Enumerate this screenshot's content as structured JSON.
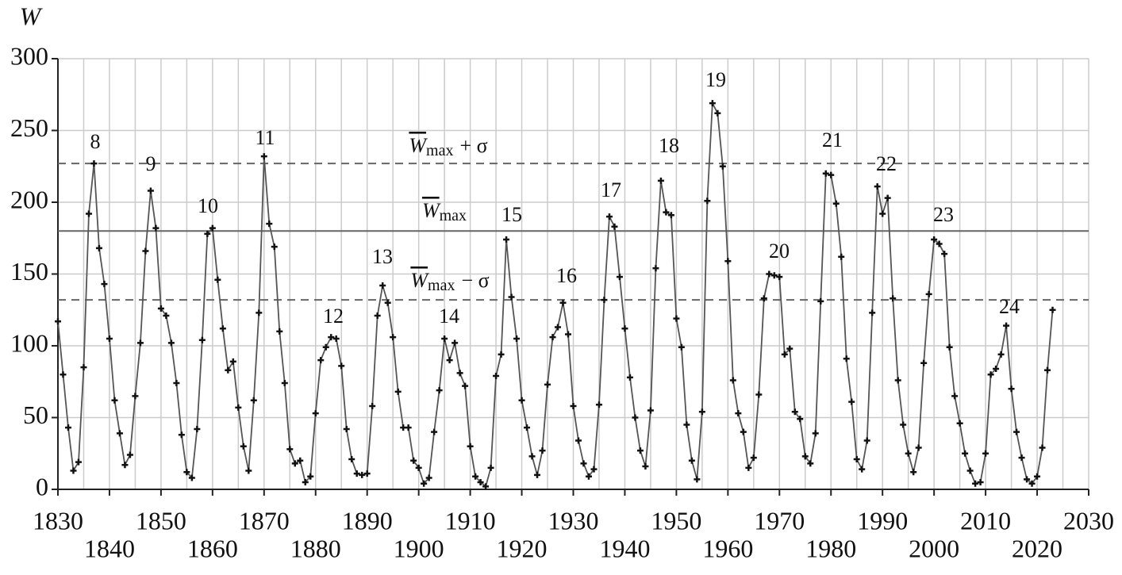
{
  "chart_data": {
    "type": "line",
    "y_label": "W",
    "x": [
      1830,
      1831,
      1832,
      1833,
      1834,
      1835,
      1836,
      1837,
      1838,
      1839,
      1840,
      1841,
      1842,
      1843,
      1844,
      1845,
      1846,
      1847,
      1848,
      1849,
      1850,
      1851,
      1852,
      1853,
      1854,
      1855,
      1856,
      1857,
      1858,
      1859,
      1860,
      1861,
      1862,
      1863,
      1864,
      1865,
      1866,
      1867,
      1868,
      1869,
      1870,
      1871,
      1872,
      1873,
      1874,
      1875,
      1876,
      1877,
      1878,
      1879,
      1880,
      1881,
      1882,
      1883,
      1884,
      1885,
      1886,
      1887,
      1888,
      1889,
      1890,
      1891,
      1892,
      1893,
      1894,
      1895,
      1896,
      1897,
      1898,
      1899,
      1900,
      1901,
      1902,
      1903,
      1904,
      1905,
      1906,
      1907,
      1908,
      1909,
      1910,
      1911,
      1912,
      1913,
      1914,
      1915,
      1916,
      1917,
      1918,
      1919,
      1920,
      1921,
      1922,
      1923,
      1924,
      1925,
      1926,
      1927,
      1928,
      1929,
      1930,
      1931,
      1932,
      1933,
      1934,
      1935,
      1936,
      1937,
      1938,
      1939,
      1940,
      1941,
      1942,
      1943,
      1944,
      1945,
      1946,
      1947,
      1948,
      1949,
      1950,
      1951,
      1952,
      1953,
      1954,
      1955,
      1956,
      1957,
      1958,
      1959,
      1960,
      1961,
      1962,
      1963,
      1964,
      1965,
      1966,
      1967,
      1968,
      1969,
      1970,
      1971,
      1972,
      1973,
      1974,
      1975,
      1976,
      1977,
      1978,
      1979,
      1980,
      1981,
      1982,
      1983,
      1984,
      1985,
      1986,
      1987,
      1988,
      1989,
      1990,
      1991,
      1992,
      1993,
      1994,
      1995,
      1996,
      1997,
      1998,
      1999,
      2000,
      2001,
      2002,
      2003,
      2004,
      2005,
      2006,
      2007,
      2008,
      2009,
      2010,
      2011,
      2012,
      2013,
      2014,
      2015,
      2016,
      2017,
      2018,
      2019,
      2020,
      2021,
      2022,
      2023
    ],
    "series": [
      {
        "color": "#555555",
        "values": [
          117,
          80,
          43,
          13,
          19,
          85,
          192,
          227,
          168,
          143,
          105,
          62,
          39,
          17,
          24,
          65,
          102,
          166,
          208,
          182,
          126,
          121,
          102,
          74,
          38,
          12,
          8,
          42,
          104,
          178,
          182,
          146,
          112,
          83,
          89,
          57,
          30,
          13,
          62,
          123,
          232,
          185,
          169,
          110,
          74,
          28,
          18,
          20,
          5,
          9,
          53,
          90,
          99,
          106,
          105,
          86,
          42,
          21,
          11,
          10,
          11,
          58,
          121,
          142,
          130,
          106,
          68,
          43,
          43,
          20,
          15,
          4,
          8,
          40,
          69,
          105,
          90,
          102,
          81,
          72,
          30,
          9,
          5,
          2,
          15,
          79,
          94,
          174,
          134,
          105,
          62,
          43,
          23,
          10,
          27,
          73,
          106,
          113,
          130,
          108,
          58,
          34,
          18,
          9,
          14,
          59,
          132,
          190,
          183,
          148,
          112,
          78,
          50,
          27,
          16,
          55,
          154,
          215,
          193,
          191,
          119,
          99,
          45,
          20,
          7,
          54,
          201,
          269,
          262,
          225,
          159,
          76,
          53,
          40,
          15,
          22,
          66,
          133,
          150,
          149,
          148,
          94,
          98,
          54,
          49,
          23,
          18,
          39,
          131,
          220,
          219,
          199,
          162,
          91,
          61,
          21,
          14,
          34,
          123,
          211,
          192,
          203,
          133,
          76,
          45,
          25,
          12,
          29,
          88,
          136,
          174,
          171,
          164,
          99,
          65,
          46,
          25,
          13,
          4,
          5,
          25,
          80,
          84,
          94,
          114,
          70,
          40,
          22,
          7,
          4,
          9,
          29,
          83,
          125
        ]
      }
    ],
    "reference_lines": [
      {
        "value": 227,
        "symbol": "W",
        "subscript": "max",
        "suffix": "+ σ",
        "style": "dashed"
      },
      {
        "value": 180,
        "symbol": "W",
        "subscript": "max",
        "style": "solid"
      },
      {
        "value": 132,
        "symbol": "W",
        "subscript": "max",
        "suffix": "− σ",
        "style": "dashed"
      }
    ],
    "cycle_labels": [
      "8",
      "9",
      "10",
      "11",
      "12",
      "13",
      "14",
      "15",
      "16",
      "17",
      "18",
      "19",
      "20",
      "21",
      "22",
      "23",
      "24"
    ],
    "xlim": [
      1830,
      2030
    ],
    "xticks": [
      1830,
      1840,
      1850,
      1860,
      1870,
      1880,
      1890,
      1900,
      1910,
      1920,
      1930,
      1940,
      1950,
      1960,
      1970,
      1980,
      1990,
      2000,
      2010,
      2020,
      2030
    ],
    "xminorticks": [
      1835,
      1845,
      1855,
      1865,
      1875,
      1885,
      1895,
      1905,
      1915,
      1925,
      1935,
      1945,
      1955,
      1965,
      1975,
      1985,
      1995,
      2005,
      2015,
      2025
    ],
    "ylim": [
      0,
      300
    ],
    "yticks": [
      0,
      50,
      100,
      150,
      200,
      250,
      300
    ],
    "grid": true
  }
}
